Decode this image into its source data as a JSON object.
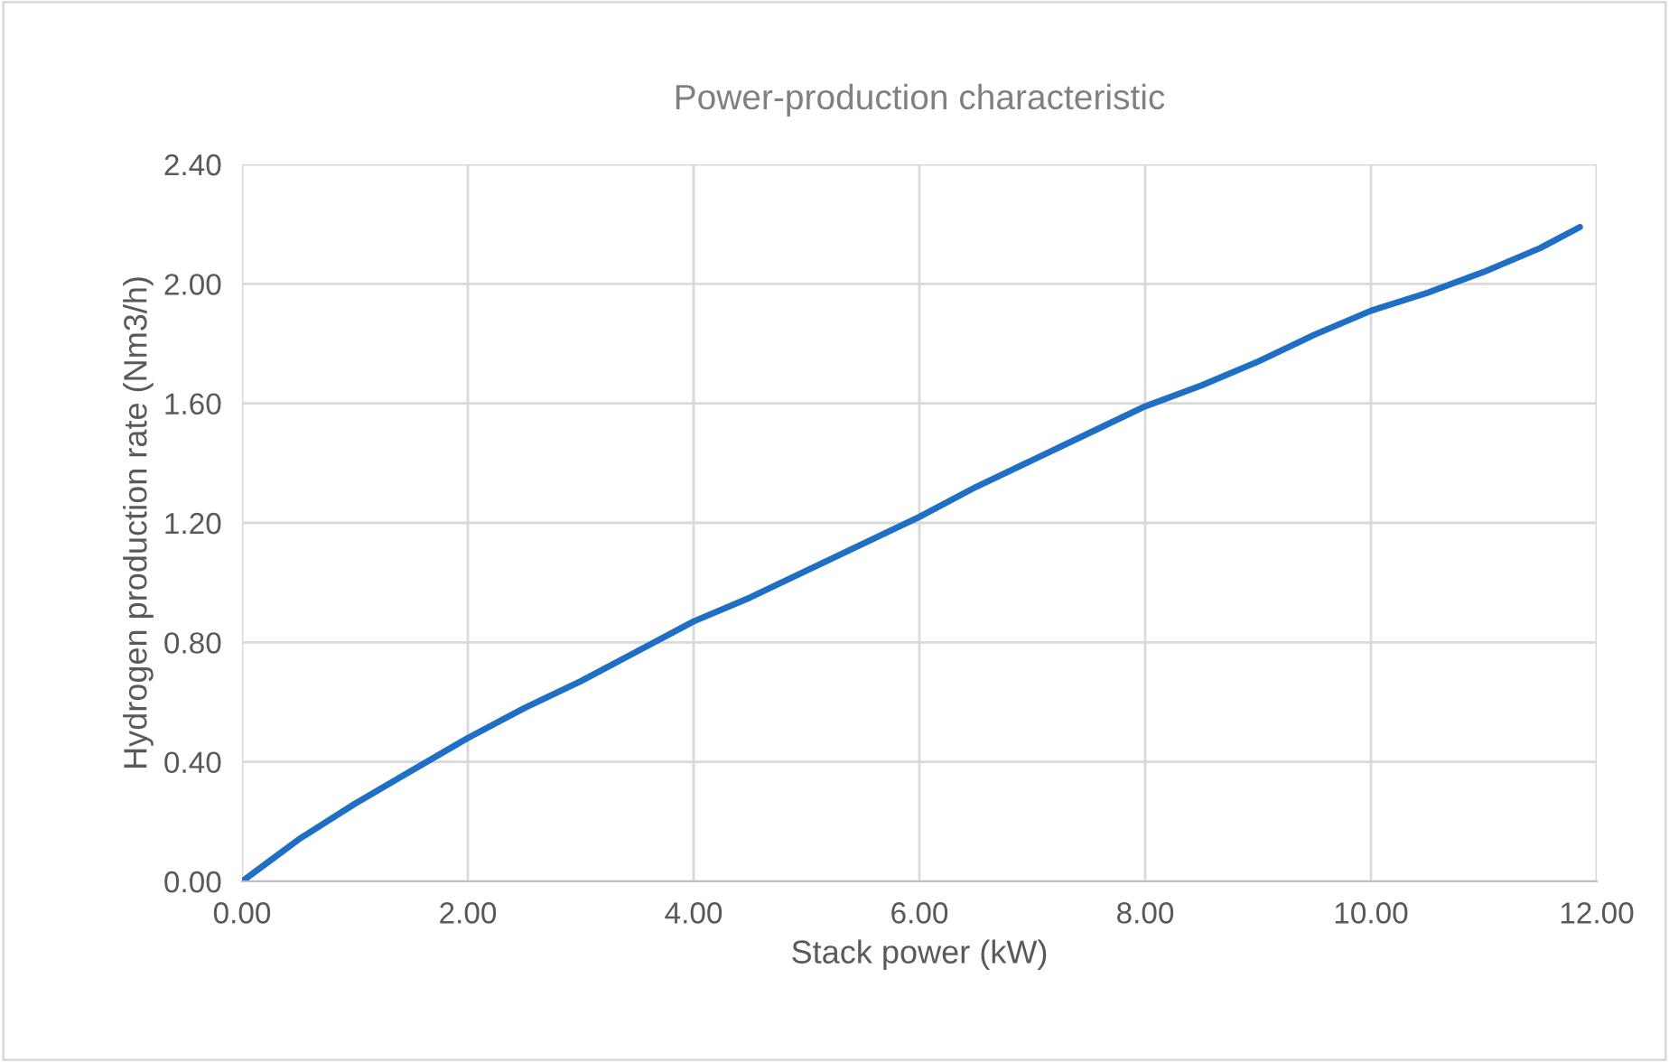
{
  "chart_data": {
    "type": "line",
    "title": "Power-production characteristic",
    "xlabel": "Stack power (kW)",
    "ylabel": "Hydrogen production rate (Nm3/h)",
    "x": [
      0,
      0.25,
      0.5,
      1,
      1.5,
      2,
      2.5,
      3,
      3.5,
      4,
      4.5,
      5,
      5.5,
      6,
      6.5,
      7,
      7.5,
      8,
      8.5,
      9,
      9.5,
      10,
      10.5,
      11,
      11.5,
      11.85
    ],
    "series": [
      {
        "color": "#1f6fc5",
        "values": [
          0.0,
          0.07,
          0.14,
          0.26,
          0.37,
          0.48,
          0.58,
          0.67,
          0.77,
          0.87,
          0.95,
          1.04,
          1.13,
          1.22,
          1.32,
          1.41,
          1.5,
          1.59,
          1.66,
          1.74,
          1.83,
          1.91,
          1.97,
          2.04,
          2.12,
          2.19
        ]
      }
    ],
    "xlim": [
      0,
      12
    ],
    "xticks": [
      {
        "value": 0,
        "label": "0.00"
      },
      {
        "value": 2,
        "label": "2.00"
      },
      {
        "value": 4,
        "label": "4.00"
      },
      {
        "value": 6,
        "label": "6.00"
      },
      {
        "value": 8,
        "label": "8.00"
      },
      {
        "value": 10,
        "label": "10.00"
      },
      {
        "value": 12,
        "label": "12.00"
      }
    ],
    "ylim": [
      0,
      2.4
    ],
    "yticks": [
      {
        "value": 0,
        "label": "0.00"
      },
      {
        "value": 0.4,
        "label": "0.40"
      },
      {
        "value": 0.8,
        "label": "0.80"
      },
      {
        "value": 1.2,
        "label": "1.20"
      },
      {
        "value": 1.6,
        "label": "1.60"
      },
      {
        "value": 2.0,
        "label": "2.00"
      },
      {
        "value": 2.4,
        "label": "2.40"
      }
    ],
    "grid": true,
    "legend": false,
    "marker": "none",
    "line_style": "solid"
  }
}
